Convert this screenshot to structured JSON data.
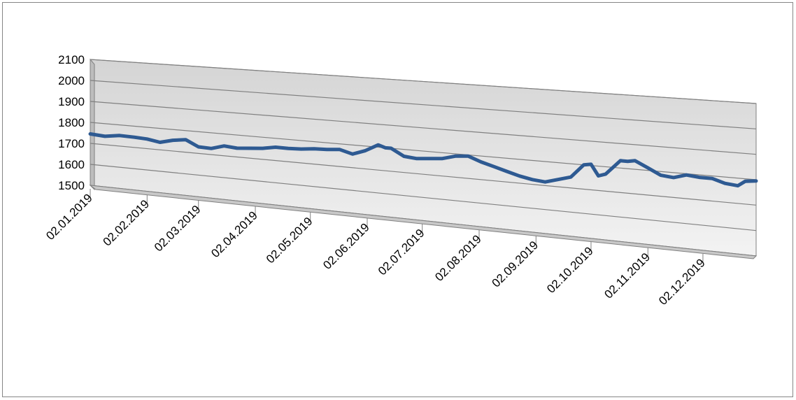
{
  "chart_data": {
    "type": "line",
    "style": "3d-perspective",
    "title": "",
    "xlabel": "",
    "ylabel": "",
    "ylim": [
      1500,
      2100
    ],
    "y_ticks": [
      "1500",
      "1600",
      "1700",
      "1800",
      "1900",
      "2000",
      "2100"
    ],
    "x_range": [
      "02.01.2019",
      "31.12.2019"
    ],
    "x_tick_labels": [
      "02.01.2019",
      "02.02.2019",
      "02.03.2019",
      "02.04.2019",
      "02.05.2019",
      "02.06.2019",
      "02.07.2019",
      "02.08.2019",
      "02.09.2019",
      "02.10.2019",
      "02.11.2019",
      "02.12.2019"
    ],
    "grid": true,
    "legend": "none",
    "colors": {
      "series": "#2e5a92",
      "wall": "#e8e8e8",
      "gridline": "#808080",
      "axis": "#808080"
    },
    "series": [
      {
        "x": [
          "02.01.2019",
          "10.01.2019",
          "18.01.2019",
          "26.01.2019",
          "02.02.2019",
          "09.02.2019",
          "16.02.2019",
          "23.02.2019",
          "02.03.2019",
          "09.03.2019",
          "16.03.2019",
          "23.03.2019",
          "30.03.2019",
          "06.04.2019",
          "13.04.2019",
          "20.04.2019",
          "27.04.2019",
          "04.05.2019",
          "11.05.2019",
          "18.05.2019",
          "25.05.2019",
          "01.06.2019",
          "08.06.2019",
          "12.06.2019",
          "15.06.2019",
          "22.06.2019",
          "29.06.2019",
          "06.07.2019",
          "13.07.2019",
          "20.07.2019",
          "27.07.2019",
          "03.08.2019",
          "10.08.2019",
          "17.08.2019",
          "24.08.2019",
          "31.08.2019",
          "07.09.2019",
          "14.09.2019",
          "21.09.2019",
          "28.09.2019",
          "02.10.2019",
          "06.10.2019",
          "10.10.2019",
          "14.10.2019",
          "18.10.2019",
          "22.10.2019",
          "26.10.2019",
          "02.11.2019",
          "09.11.2019",
          "16.11.2019",
          "23.11.2019",
          "30.11.2019",
          "07.12.2019",
          "14.12.2019",
          "21.12.2019",
          "25.12.2019",
          "31.12.2019"
        ],
        "y": [
          1745,
          1740,
          1750,
          1748,
          1745,
          1735,
          1750,
          1758,
          1730,
          1728,
          1745,
          1740,
          1745,
          1750,
          1760,
          1760,
          1762,
          1768,
          1770,
          1775,
          1760,
          1780,
          1810,
          1800,
          1800,
          1770,
          1765,
          1770,
          1775,
          1790,
          1795,
          1775,
          1760,
          1745,
          1730,
          1720,
          1715,
          1730,
          1745,
          1800,
          1805,
          1760,
          1770,
          1800,
          1830,
          1830,
          1835,
          1810,
          1785,
          1780,
          1795,
          1790,
          1790,
          1775,
          1770,
          1790,
          1795
        ]
      }
    ]
  }
}
